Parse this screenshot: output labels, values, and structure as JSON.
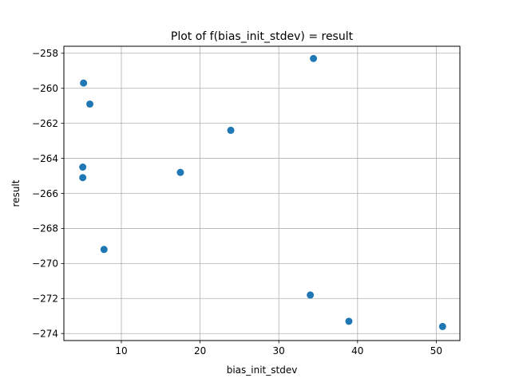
{
  "chart_data": {
    "type": "scatter",
    "title": "Plot of f(bias_init_stdev) = result",
    "xlabel": "bias_init_stdev",
    "ylabel": "result",
    "xlim": [
      2.7,
      53.0
    ],
    "ylim": [
      -274.4,
      -257.6
    ],
    "xticks": [
      10,
      20,
      30,
      40,
      50
    ],
    "yticks": [
      -258,
      -260,
      -262,
      -264,
      -266,
      -268,
      -270,
      -272,
      -274
    ],
    "xtick_labels": [
      "10",
      "20",
      "30",
      "40",
      "50"
    ],
    "ytick_labels": [
      "−258",
      "−260",
      "−262",
      "−264",
      "−266",
      "−268",
      "−270",
      "−272",
      "−274"
    ],
    "grid": true,
    "series": [
      {
        "color": "#1f77b4",
        "points": [
          {
            "x": 34.4,
            "y": -258.3
          },
          {
            "x": 5.2,
            "y": -259.7
          },
          {
            "x": 6.0,
            "y": -260.9
          },
          {
            "x": 23.9,
            "y": -262.4
          },
          {
            "x": 5.1,
            "y": -264.5
          },
          {
            "x": 17.5,
            "y": -264.8
          },
          {
            "x": 5.1,
            "y": -265.1
          },
          {
            "x": 7.8,
            "y": -269.2
          },
          {
            "x": 34.0,
            "y": -271.8
          },
          {
            "x": 38.9,
            "y": -273.3
          },
          {
            "x": 50.8,
            "y": -273.6
          }
        ]
      }
    ]
  }
}
